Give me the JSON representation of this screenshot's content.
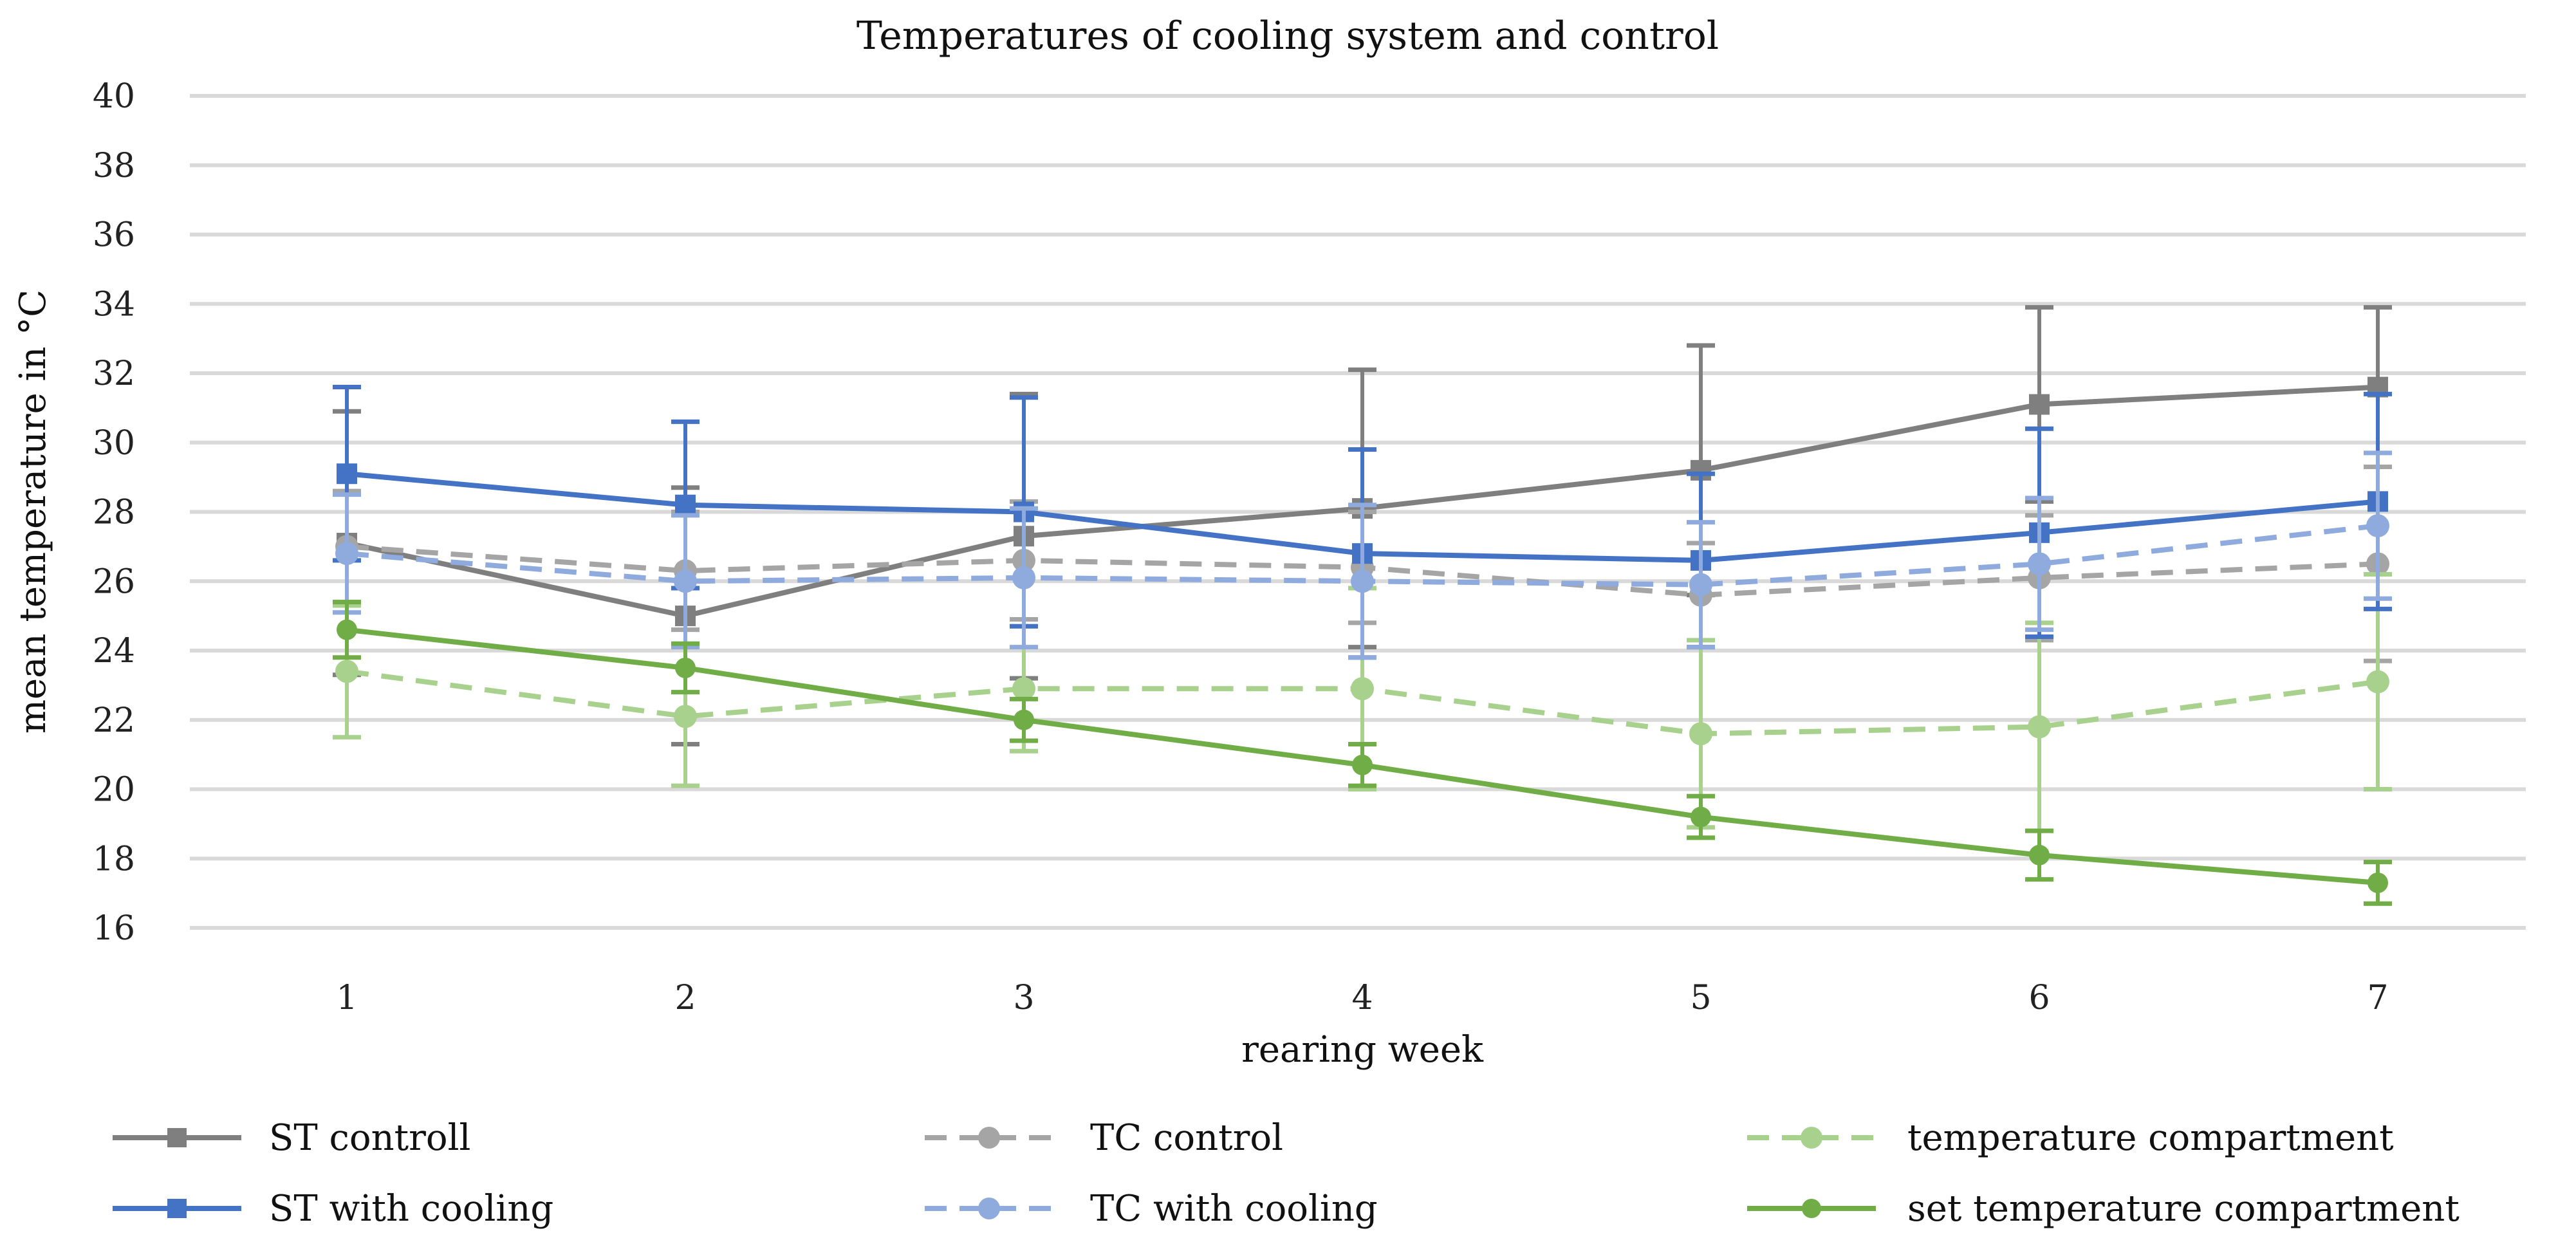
{
  "chart_data": {
    "type": "line",
    "title": "Temperatures of cooling system and control",
    "xlabel": "rearing week",
    "ylabel": "mean temperature in °C",
    "x": [
      1,
      2,
      3,
      4,
      5,
      6,
      7
    ],
    "x_tick_labels": [
      "1",
      "2",
      "3",
      "4",
      "5",
      "6",
      "7"
    ],
    "ylim": [
      16,
      40
    ],
    "y_ticks": [
      16,
      18,
      20,
      22,
      24,
      26,
      28,
      30,
      32,
      34,
      36,
      38,
      40
    ],
    "y_tick_labels": [
      "16",
      "18",
      "20",
      "22",
      "24",
      "26",
      "28",
      "30",
      "32",
      "34",
      "36",
      "38",
      "40"
    ],
    "grid": true,
    "legend_position": "bottom",
    "series": [
      {
        "name": "ST controll",
        "color": "#7f7f7f",
        "dash": false,
        "marker": "square",
        "values": [
          27.1,
          25.0,
          27.3,
          28.1,
          29.2,
          31.1,
          31.6
        ],
        "error": [
          3.8,
          3.7,
          4.1,
          4.0,
          3.6,
          2.8,
          2.3
        ]
      },
      {
        "name": "TC control",
        "color": "#a5a5a5",
        "dash": true,
        "marker": "circle",
        "values": [
          27.0,
          26.3,
          26.6,
          26.4,
          25.6,
          26.1,
          26.5
        ],
        "error": [
          1.6,
          1.7,
          1.7,
          1.6,
          1.5,
          1.8,
          2.8
        ]
      },
      {
        "name": "temperature compartment",
        "color": "#a9d18e",
        "dash": true,
        "marker": "circle",
        "values": [
          23.4,
          22.1,
          22.9,
          22.9,
          21.6,
          21.8,
          23.1
        ],
        "error": [
          1.9,
          2.0,
          1.8,
          2.9,
          2.7,
          3.0,
          3.1
        ]
      },
      {
        "name": "ST with cooling",
        "color": "#4472c4",
        "dash": false,
        "marker": "square",
        "values": [
          29.1,
          28.2,
          28.0,
          26.8,
          26.6,
          27.4,
          28.3
        ],
        "error": [
          2.5,
          2.4,
          3.3,
          3.0,
          2.5,
          3.0,
          3.1
        ]
      },
      {
        "name": "TC with cooling",
        "color": "#8faadc",
        "dash": true,
        "marker": "circle",
        "values": [
          26.8,
          26.0,
          26.1,
          26.0,
          25.9,
          26.5,
          27.6
        ],
        "error": [
          1.7,
          1.9,
          2.0,
          2.2,
          1.8,
          1.9,
          2.1
        ]
      },
      {
        "name": "set temperature compartment",
        "color": "#70ad47",
        "dash": false,
        "marker": "diamond",
        "values": [
          24.6,
          23.5,
          22.0,
          20.7,
          19.2,
          18.1,
          17.3
        ],
        "error": [
          0.8,
          0.7,
          0.6,
          0.6,
          0.6,
          0.7,
          0.6
        ]
      }
    ]
  }
}
